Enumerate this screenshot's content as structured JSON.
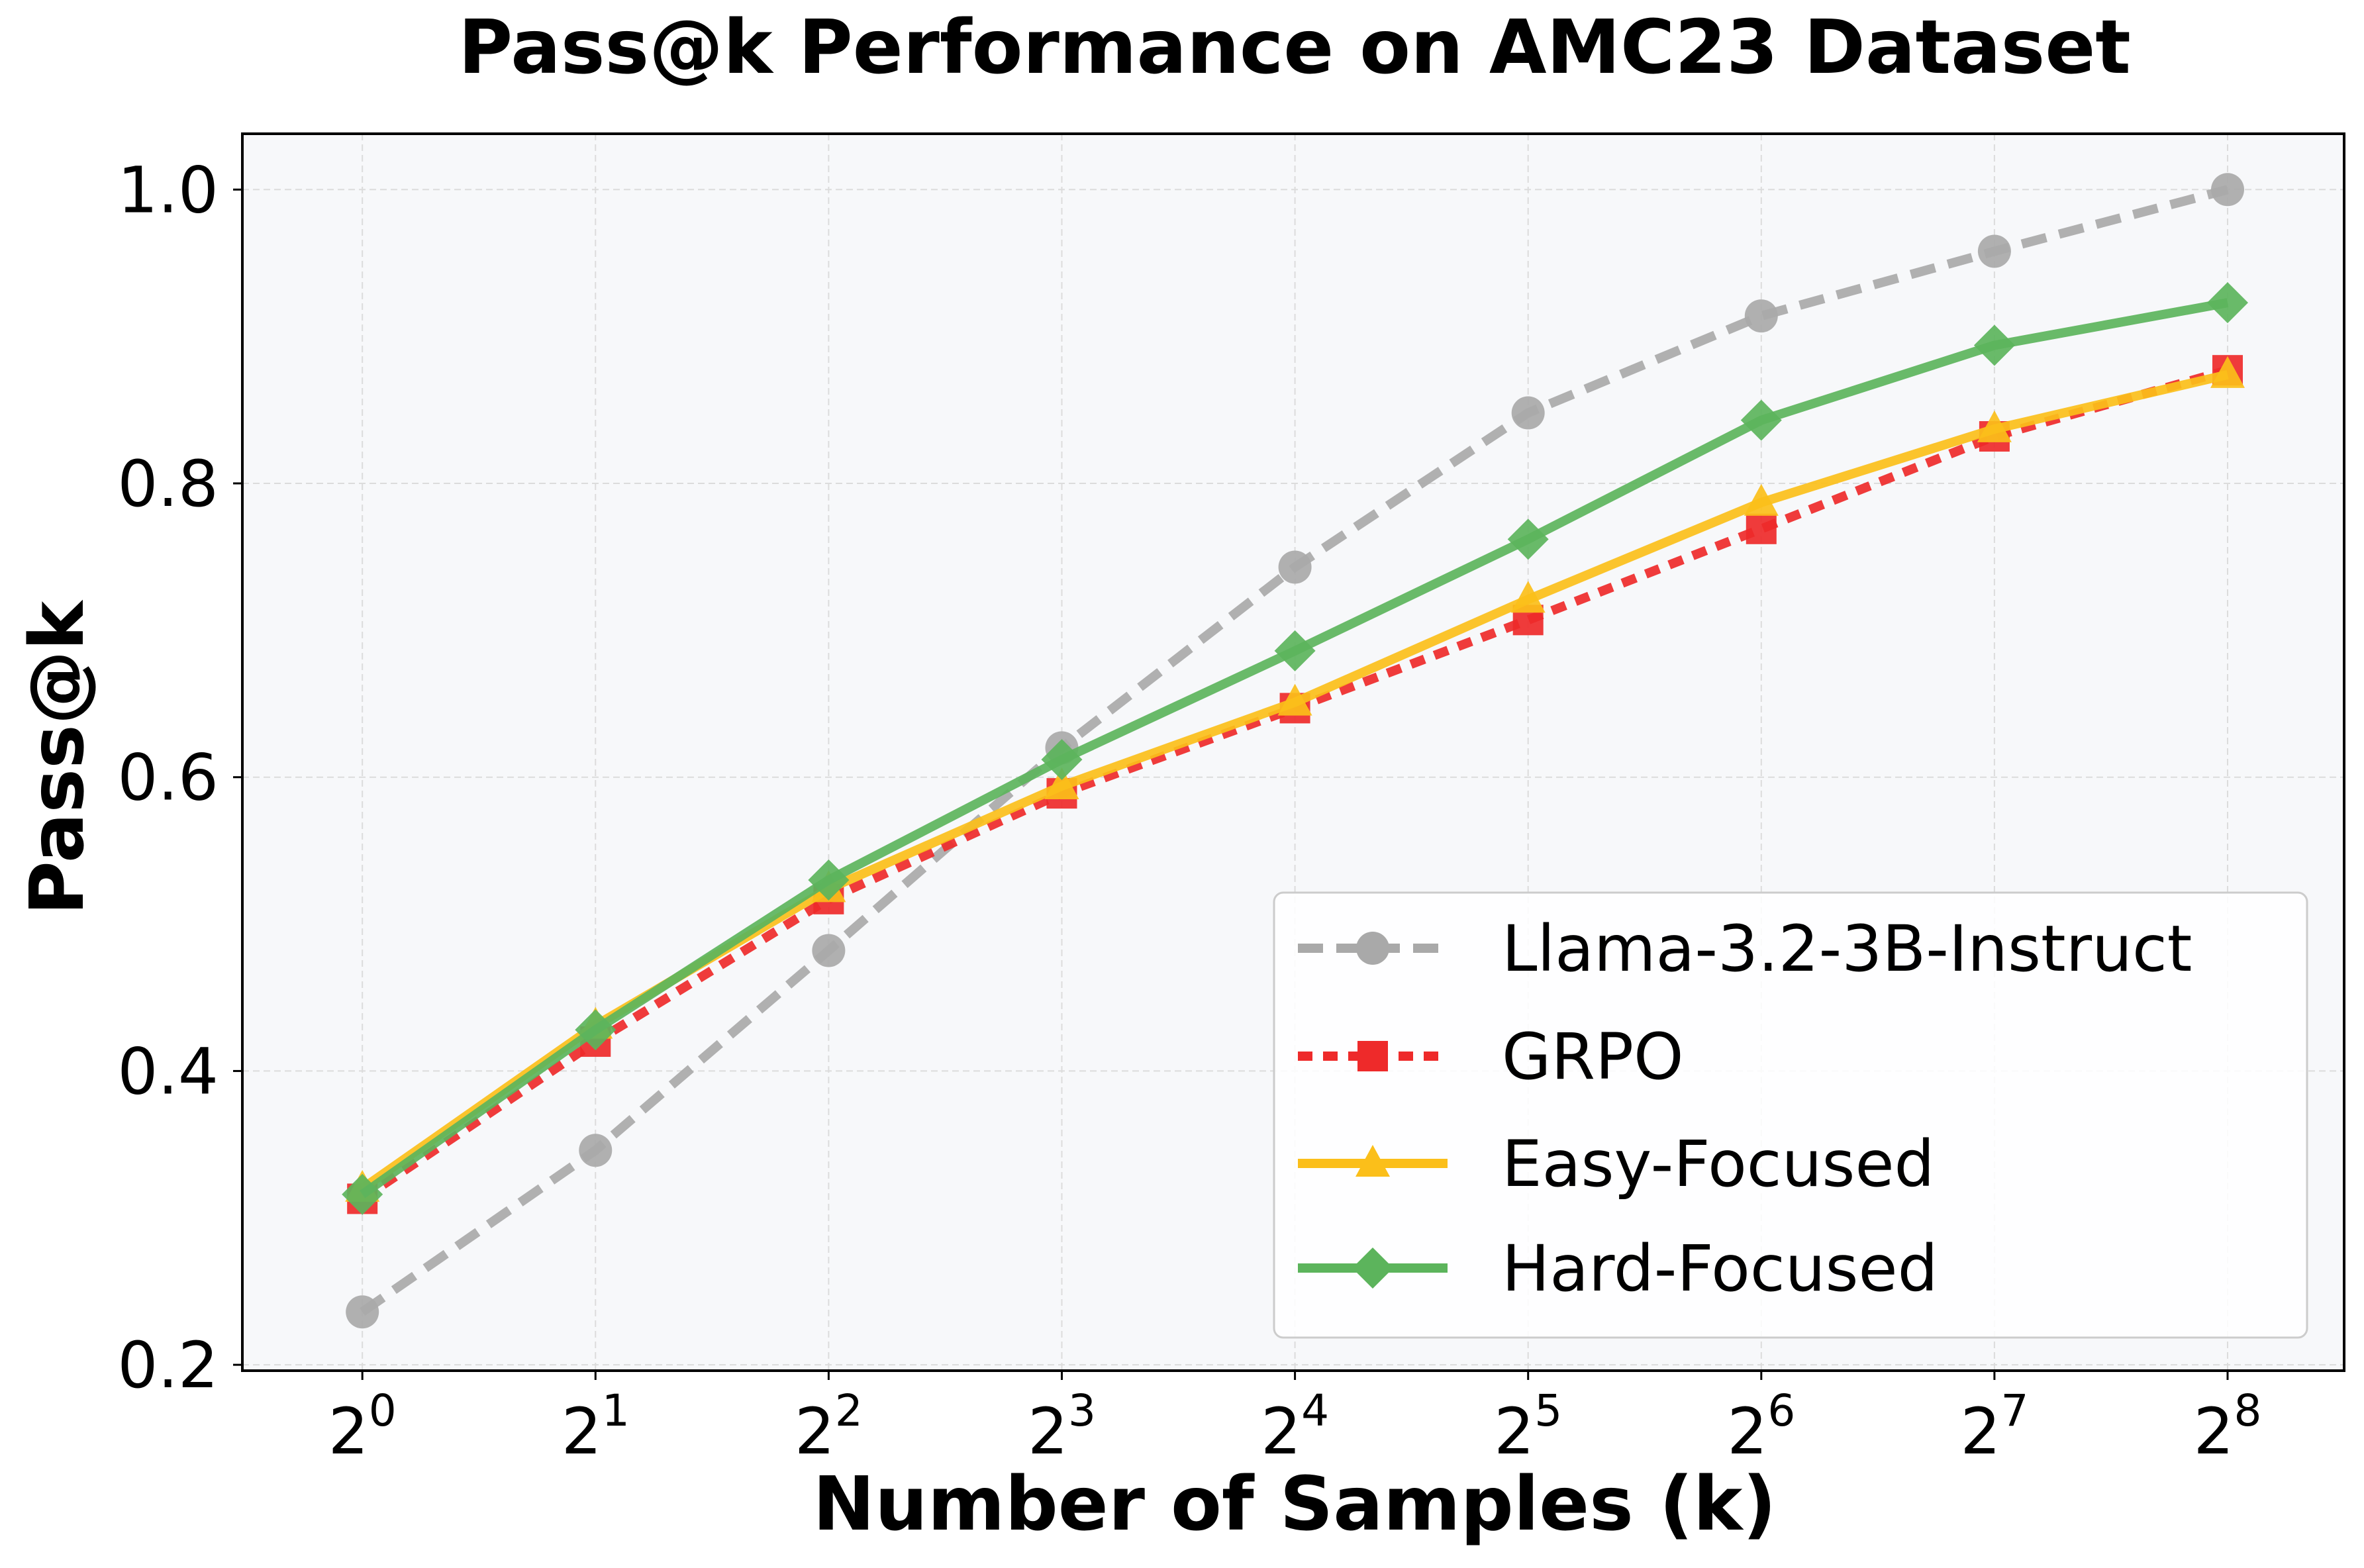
{
  "chart_data": {
    "type": "line",
    "title": "Pass@k Performance on AMC23 Dataset",
    "xlabel": "Number of Samples (k)",
    "ylabel": "Pass@k",
    "x_tick_labels": [
      {
        "base": "2",
        "exp": "0"
      },
      {
        "base": "2",
        "exp": "1"
      },
      {
        "base": "2",
        "exp": "2"
      },
      {
        "base": "2",
        "exp": "3"
      },
      {
        "base": "2",
        "exp": "4"
      },
      {
        "base": "2",
        "exp": "5"
      },
      {
        "base": "2",
        "exp": "6"
      },
      {
        "base": "2",
        "exp": "7"
      },
      {
        "base": "2",
        "exp": "8"
      }
    ],
    "x": [
      1,
      2,
      4,
      8,
      16,
      32,
      64,
      128,
      256
    ],
    "x_scale": "log2",
    "xlim": [
      0.7,
      362
    ],
    "y_ticks": [
      "0.2",
      "0.4",
      "0.6",
      "0.8",
      "1.0"
    ],
    "ylim": [
      0.196,
      1.038
    ],
    "grid": true,
    "legend_position": "lower-right",
    "series": [
      {
        "name": "Llama-3.2-3B-Instruct",
        "color": "#a9a9a9",
        "line": "dashed",
        "marker": "circle",
        "values": [
          0.236,
          0.346,
          0.482,
          0.62,
          0.743,
          0.848,
          0.914,
          0.958,
          1.0
        ]
      },
      {
        "name": "GRPO",
        "color": "#ee2a2a",
        "line": "dotted",
        "marker": "square",
        "values": [
          0.313,
          0.42,
          0.517,
          0.589,
          0.647,
          0.707,
          0.769,
          0.832,
          0.877
        ]
      },
      {
        "name": "Easy-Focused",
        "color": "#fbbf1a",
        "line": "solid",
        "marker": "triangle",
        "values": [
          0.32,
          0.431,
          0.524,
          0.594,
          0.651,
          0.721,
          0.787,
          0.837,
          0.874
        ]
      },
      {
        "name": "Hard-Focused",
        "color": "#5cb45c",
        "line": "solid",
        "marker": "diamond",
        "values": [
          0.316,
          0.428,
          0.53,
          0.612,
          0.686,
          0.762,
          0.843,
          0.894,
          0.923
        ]
      }
    ]
  }
}
